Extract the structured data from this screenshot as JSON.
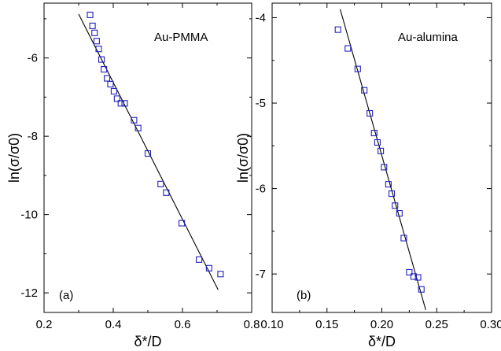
{
  "chart_data": [
    {
      "type": "scatter",
      "panel_label": "(a)",
      "annotation": "Au-PMMA",
      "xlabel": "δ*/D",
      "ylabel": "ln(σ/σ0)",
      "xlim": [
        0.2,
        0.8
      ],
      "ylim": [
        -12.5,
        -4.6
      ],
      "xticks": [
        0.2,
        0.4,
        0.6,
        0.8
      ],
      "xtick_labels": [
        "0.2",
        "0.4",
        "0.6",
        "0.8"
      ],
      "yticks": [
        -12,
        -10,
        -8,
        -6
      ],
      "ytick_labels": [
        "-12",
        "-10",
        "-8",
        "-6"
      ],
      "marker_color": "#2222bb",
      "grid": false,
      "series": [
        {
          "x": [
            0.333,
            0.34,
            0.346,
            0.352,
            0.358,
            0.366,
            0.373,
            0.382,
            0.392,
            0.402,
            0.411,
            0.422,
            0.433,
            0.46,
            0.472,
            0.5,
            0.537,
            0.553,
            0.598,
            0.648,
            0.677,
            0.71
          ],
          "y": [
            -4.9,
            -5.18,
            -5.36,
            -5.57,
            -5.77,
            -6.04,
            -6.29,
            -6.52,
            -6.67,
            -6.85,
            -7.04,
            -7.16,
            -7.16,
            -7.59,
            -7.79,
            -8.44,
            -9.22,
            -9.44,
            -10.22,
            -11.15,
            -11.37,
            -11.52
          ]
        }
      ],
      "fit_line": {
        "x": [
          0.3,
          0.703
        ],
        "y": [
          -4.88,
          -11.92
        ]
      }
    },
    {
      "type": "scatter",
      "panel_label": "(b)",
      "annotation": "Au-alumina",
      "xlabel": "δ*/D",
      "ylabel": "ln(σ/σ0)",
      "xlim": [
        0.1,
        0.3
      ],
      "ylim": [
        -7.45,
        -3.83
      ],
      "xticks": [
        0.1,
        0.15,
        0.2,
        0.25,
        0.3
      ],
      "xtick_labels": [
        "0.10",
        "0.15",
        "0.20",
        "0.25",
        "0.30"
      ],
      "yticks": [
        -7,
        -6,
        -5,
        -4
      ],
      "ytick_labels": [
        "-7",
        "-6",
        "-5",
        "-4"
      ],
      "marker_color": "#2222bb",
      "grid": false,
      "series": [
        {
          "x": [
            0.16,
            0.169,
            0.178,
            0.184,
            0.189,
            0.193,
            0.196,
            0.199,
            0.202,
            0.206,
            0.209,
            0.212,
            0.216,
            0.22,
            0.225,
            0.229,
            0.233,
            0.236
          ],
          "y": [
            -4.14,
            -4.36,
            -4.6,
            -4.85,
            -5.12,
            -5.35,
            -5.46,
            -5.56,
            -5.75,
            -5.95,
            -6.06,
            -6.2,
            -6.29,
            -6.58,
            -6.98,
            -7.03,
            -7.04,
            -7.18
          ]
        }
      ],
      "fit_line": {
        "x": [
          0.162,
          0.24
        ],
        "y": [
          -3.9,
          -7.42
        ]
      }
    }
  ]
}
